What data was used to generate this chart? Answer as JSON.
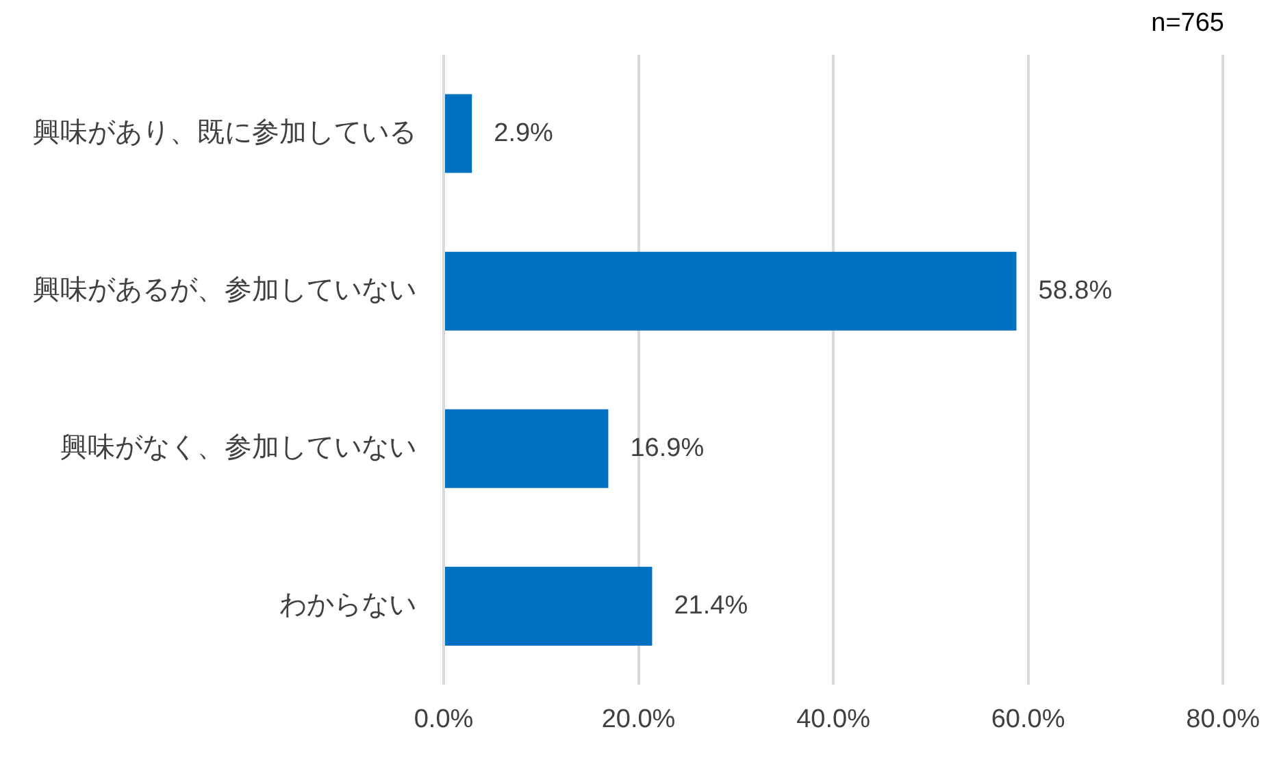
{
  "chart_data": {
    "type": "bar",
    "orientation": "horizontal",
    "categories": [
      "興味があり、既に参加している",
      "興味があるが、参加していない",
      "興味がなく、参加していない",
      "わからない"
    ],
    "values": [
      2.9,
      58.8,
      16.9,
      21.4
    ],
    "color": "#0070c0",
    "value_labels": [
      "2.9%",
      "58.8%",
      "16.9%",
      "21.4%"
    ],
    "xlim": [
      0,
      80
    ],
    "xticks": [
      {
        "value": 0,
        "label": "0.0%"
      },
      {
        "value": 20,
        "label": "20.0%"
      },
      {
        "value": 40,
        "label": "40.0%"
      },
      {
        "value": 60,
        "label": "60.0%"
      },
      {
        "value": 80,
        "label": "80.0%"
      }
    ],
    "grid": "x",
    "legend": false,
    "annotations": [
      "n=765"
    ]
  }
}
